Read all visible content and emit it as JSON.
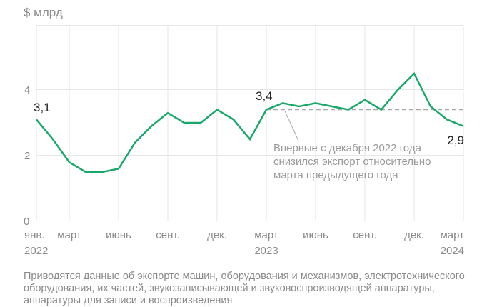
{
  "chart_data": {
    "type": "line",
    "unit_label": "$ млрд",
    "ylim": [
      0,
      6
    ],
    "yticks": [
      0,
      2,
      4
    ],
    "x": [
      "2022-01",
      "2022-02",
      "2022-03",
      "2022-04",
      "2022-05",
      "2022-06",
      "2022-07",
      "2022-08",
      "2022-09",
      "2022-10",
      "2022-11",
      "2022-12",
      "2023-01",
      "2023-02",
      "2023-03",
      "2023-04",
      "2023-05",
      "2023-06",
      "2023-07",
      "2023-08",
      "2023-09",
      "2023-10",
      "2023-11",
      "2023-12",
      "2024-01",
      "2024-02",
      "2024-03"
    ],
    "series": [
      {
        "name": "Экспорт",
        "color": "#1aa86a",
        "values": [
          3.1,
          2.5,
          1.8,
          1.5,
          1.5,
          1.6,
          2.4,
          2.9,
          3.3,
          3.0,
          3.0,
          3.4,
          3.1,
          2.5,
          3.4,
          3.6,
          3.5,
          3.6,
          3.5,
          3.4,
          3.7,
          3.4,
          4.0,
          4.5,
          3.5,
          3.1,
          2.9
        ]
      }
    ],
    "xticks": [
      {
        "i": 0,
        "label": "янв.",
        "year": "2022"
      },
      {
        "i": 2,
        "label": "март"
      },
      {
        "i": 5,
        "label": "июнь"
      },
      {
        "i": 8,
        "label": "сент."
      },
      {
        "i": 11,
        "label": "дек."
      },
      {
        "i": 14,
        "label": "март",
        "year": "2023"
      },
      {
        "i": 17,
        "label": "июнь"
      },
      {
        "i": 20,
        "label": "сент."
      },
      {
        "i": 23,
        "label": "дек."
      },
      {
        "i": 26,
        "label": "март",
        "year": "2024"
      }
    ],
    "data_labels": [
      {
        "i": 0,
        "text": "3,1"
      },
      {
        "i": 14,
        "text": "3,4"
      },
      {
        "i": 26,
        "text": "2,9"
      }
    ],
    "reference_line": {
      "value": 3.4,
      "from": 14,
      "to": 26
    },
    "annotation": [
      "Впервые с декабря 2022 года",
      "снизился экспорт относительно",
      "марта предыдущего года"
    ]
  },
  "note": "Приводятся данные об экспорте машин, оборудования и механизмов, электротехнического оборудования, их частей, звукозаписывающей и звуковоспроизводящей аппаратуры, аппаратуры для записи и воспроизведения"
}
